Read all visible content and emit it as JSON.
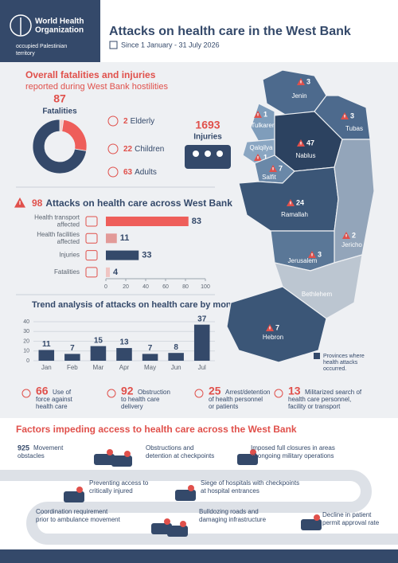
{
  "header": {
    "org": [
      "World Health",
      "Organization"
    ],
    "region": [
      "occupied Palestinian",
      "territory"
    ],
    "title": "Attacks on health care in the West Bank",
    "date": "Since 1 January - 31 July 2026"
  },
  "casualties": {
    "title": "Overall fatalities and injuries",
    "subtitle": "reported during West Bank hostilities",
    "fatalities": {
      "total": 87,
      "label": "Fatalities",
      "groups": [
        {
          "value": 2,
          "label": "Elderly",
          "color": "#f6cdc8"
        },
        {
          "value": 22,
          "label": "Children",
          "color": "#ee5e5a"
        },
        {
          "value": 63,
          "label": "Adults",
          "color": "#34496a"
        }
      ]
    },
    "injuries": {
      "value": 1693,
      "label": "Injuries"
    }
  },
  "attacks": {
    "total": 98,
    "title": "Attacks on health care across West Bank",
    "chart_data": {
      "type": "bar",
      "horizontal": true,
      "categories": [
        [
          "Health transport",
          "affected"
        ],
        [
          "Health facilities",
          "affected"
        ],
        [
          "Injuries"
        ],
        [
          "Fatalities"
        ]
      ],
      "values": [
        83,
        11,
        33,
        4
      ],
      "colors": [
        "#ee5e5a",
        "#e29a98",
        "#34496a",
        "#f0c5c3"
      ],
      "xlim": [
        0,
        100
      ],
      "xticks": [
        0,
        20,
        40,
        60,
        80,
        100
      ]
    }
  },
  "trend": {
    "chart_data": {
      "type": "bar",
      "horizontal": false,
      "title": "Trend analysis of attacks on health care by month",
      "categories": [
        "Jan",
        "Feb",
        "Mar",
        "Apr",
        "May",
        "Jun",
        "Jul"
      ],
      "values": [
        11,
        7,
        15,
        13,
        7,
        8,
        37
      ],
      "color": "#34496a",
      "ylim": [
        0,
        40
      ],
      "yticks": [
        0,
        10,
        20,
        30,
        40
      ],
      "grid": true
    }
  },
  "stats": [
    {
      "value": 66,
      "label": [
        "Use of",
        "force against",
        "health care"
      ]
    },
    {
      "value": 92,
      "label": [
        "Obstruction",
        "to health care",
        "delivery"
      ]
    },
    {
      "value": 25,
      "label": [
        "Arrest/detention",
        "of health personnel",
        "or patients"
      ]
    },
    {
      "value": 13,
      "label": [
        "Militarized search of",
        "health care personnel,",
        "facility or transport"
      ]
    }
  ],
  "map": {
    "regions": [
      {
        "name": "Jenin",
        "value": 3,
        "color": "#4d6a8d"
      },
      {
        "name": "Tubas",
        "value": 3,
        "color": "#4d6a8d"
      },
      {
        "name": "Tulkarem",
        "value": 1,
        "color": "#7f9dbb"
      },
      {
        "name": "Nablus",
        "value": 47,
        "color": "#2c4260"
      },
      {
        "name": "Qalqilya",
        "value": 1,
        "color": "#8aa6c2"
      },
      {
        "name": "Salfit",
        "value": 7,
        "color": "#6a88a8"
      },
      {
        "name": "Ramallah",
        "value": 24,
        "color": "#3b5677"
      },
      {
        "name": "Jericho",
        "value": 2,
        "color": "#52709295"
      },
      {
        "name": "Jerusalem",
        "value": 3,
        "color": "#5a7797"
      },
      {
        "name": "Bethlehem",
        "color": "#bcc6d1"
      },
      {
        "name": "Hebron",
        "value": 7,
        "color": "#3b5677"
      }
    ],
    "legend": [
      "Provinces where",
      "health attacks",
      "occurred."
    ],
    "legend_color": "#34496a"
  },
  "factors": {
    "title": "Factors impeding access to health care across the West Bank",
    "items": [
      {
        "value": 925,
        "label": [
          "Movement",
          "obstacles"
        ]
      },
      {
        "label": [
          "Obstructions and",
          "detention at checkpoints"
        ]
      },
      {
        "label": [
          "Imposed full closures in areas",
          "of ongoing military operations"
        ]
      },
      {
        "label": [
          "Preventing access to",
          "critically injured"
        ]
      },
      {
        "label": [
          "Siege of hospitals with checkpoints",
          "at hospital entrances"
        ]
      },
      {
        "label": [
          "Coordination requirement",
          "prior to ambulance movement"
        ]
      },
      {
        "label": [
          "Bulldozing roads and",
          "damaging infrastructure"
        ]
      },
      {
        "label": [
          "Decline in patient",
          "permit approval rate"
        ]
      }
    ]
  }
}
